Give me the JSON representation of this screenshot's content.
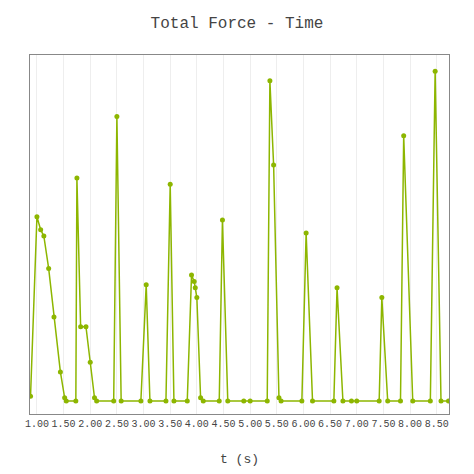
{
  "chart_data": {
    "type": "line",
    "title": "Total Force - Time",
    "xlabel": "t (s)",
    "color": "#8db600",
    "marker": "circle",
    "xlim": [
      0.87,
      8.73
    ],
    "ylim": [
      -0.03,
      1.08
    ],
    "xticks": [
      {
        "value": 1.0,
        "label": "1.00"
      },
      {
        "value": 1.5,
        "label": "1.50"
      },
      {
        "value": 2.0,
        "label": "2.00"
      },
      {
        "value": 2.5,
        "label": "2.50"
      },
      {
        "value": 3.0,
        "label": "3.00"
      },
      {
        "value": 3.5,
        "label": "3.50"
      },
      {
        "value": 4.0,
        "label": "4.00"
      },
      {
        "value": 4.5,
        "label": "4.50"
      },
      {
        "value": 5.0,
        "label": "5.00"
      },
      {
        "value": 5.5,
        "label": "5.50"
      },
      {
        "value": 6.0,
        "label": "6.00"
      },
      {
        "value": 6.5,
        "label": "6.50"
      },
      {
        "value": 7.0,
        "label": "7.00"
      },
      {
        "value": 7.5,
        "label": "7.50"
      },
      {
        "value": 8.0,
        "label": "8.00"
      },
      {
        "value": 8.5,
        "label": "8.50"
      }
    ],
    "yticks": [],
    "grid": true,
    "tick_labels": "x",
    "x": [
      0.88,
      1.0,
      1.07,
      1.13,
      1.22,
      1.32,
      1.44,
      1.52,
      1.55,
      1.73,
      1.75,
      1.82,
      1.92,
      2.0,
      2.08,
      2.12,
      2.44,
      2.5,
      2.58,
      2.95,
      3.05,
      3.12,
      3.42,
      3.5,
      3.57,
      3.82,
      3.9,
      3.95,
      3.97,
      4.0,
      4.07,
      4.12,
      4.42,
      4.48,
      4.58,
      4.88,
      5.0,
      5.32,
      5.37,
      5.44,
      5.54,
      5.58,
      5.97,
      6.05,
      6.17,
      6.57,
      6.63,
      6.74,
      6.9,
      7.0,
      7.42,
      7.47,
      7.58,
      7.82,
      7.88,
      8.05,
      8.38,
      8.47,
      8.58,
      8.72
    ],
    "values": [
      0.025,
      0.58,
      0.54,
      0.52,
      0.42,
      0.27,
      0.1,
      0.02,
      0.01,
      0.01,
      0.7,
      0.24,
      0.24,
      0.13,
      0.02,
      0.01,
      0.01,
      0.89,
      0.01,
      0.01,
      0.37,
      0.01,
      0.01,
      0.68,
      0.01,
      0.01,
      0.4,
      0.38,
      0.36,
      0.33,
      0.02,
      0.01,
      0.01,
      0.57,
      0.01,
      0.01,
      0.01,
      0.01,
      1.0,
      0.74,
      0.02,
      0.01,
      0.01,
      0.53,
      0.01,
      0.01,
      0.36,
      0.01,
      0.01,
      0.01,
      0.01,
      0.33,
      0.01,
      0.01,
      0.83,
      0.01,
      0.01,
      1.03,
      0.01,
      0.01
    ]
  }
}
